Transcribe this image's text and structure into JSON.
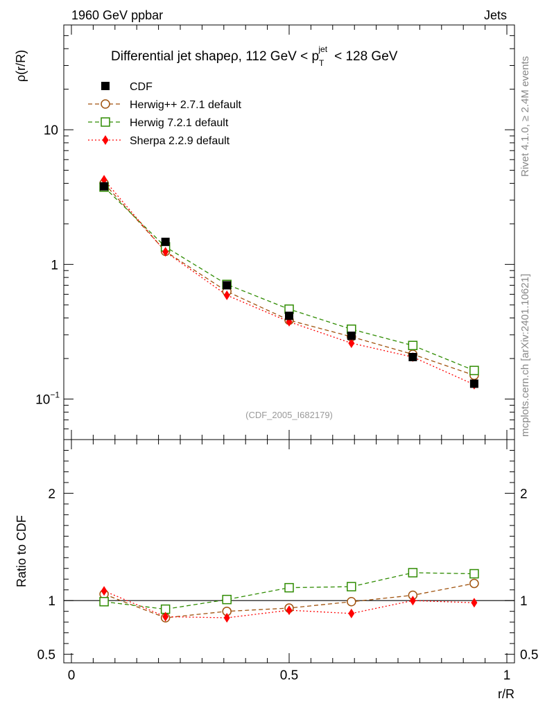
{
  "header": {
    "left": "1960 GeV ppbar",
    "right": "Jets"
  },
  "side_labels": {
    "rivet": "Rivet 4.1.0, ≥ 2.4M events",
    "mcplots": "mcplots.cern.ch [arXiv:2401.10621]"
  },
  "analysis_tag": "(CDF_2005_I682179)",
  "chart_data": [
    {
      "type": "line",
      "title": "Differential jet shapeρ, 112 GeV < p",
      "title_sub": "T",
      "title_sup": "jet",
      "title_end": "< 128 GeV",
      "ylabel": "ρ(r/R)",
      "yscale": "log",
      "ylim": [
        0.05,
        60
      ],
      "xlim": [
        0,
        1
      ],
      "yticks": [
        {
          "value": 0.1,
          "label": "10",
          "sup": "−1"
        },
        {
          "value": 1,
          "label": "1",
          "sup": ""
        },
        {
          "value": 10,
          "label": "10",
          "sup": ""
        }
      ],
      "x": [
        0.075,
        0.216,
        0.357,
        0.5,
        0.643,
        0.784,
        0.925
      ],
      "series": [
        {
          "name": "CDF",
          "color": "#000000",
          "marker": "square-filled",
          "line": "none",
          "values": [
            3.8,
            1.47,
            0.7,
            0.415,
            0.295,
            0.205,
            0.13
          ]
        },
        {
          "name": "Herwig++ 2.7.1 default",
          "color": "#a0520d",
          "marker": "circle-open",
          "line": "dashed",
          "values": [
            4.0,
            1.25,
            0.63,
            0.385,
            0.29,
            0.215,
            0.15
          ]
        },
        {
          "name": "Herwig 7.2.1 default",
          "color": "#2e8b00",
          "marker": "square-open",
          "line": "dashed",
          "values": [
            3.75,
            1.35,
            0.71,
            0.465,
            0.33,
            0.25,
            0.163
          ]
        },
        {
          "name": "Sherpa 2.2.9 default",
          "color": "#ff0000",
          "marker": "diamond-filled",
          "line": "dotted",
          "values": [
            4.25,
            1.24,
            0.59,
            0.375,
            0.26,
            0.205,
            0.128
          ]
        }
      ]
    },
    {
      "type": "line",
      "title": "",
      "ylabel": "Ratio to CDF",
      "xlabel": "r/R",
      "ylim": [
        0.42,
        2.5
      ],
      "xlim": [
        0,
        1
      ],
      "yticks": [
        {
          "value": 0.5,
          "label": "0.5"
        },
        {
          "value": 1,
          "label": "1"
        },
        {
          "value": 2,
          "label": "2"
        }
      ],
      "xticks": [
        {
          "value": 0,
          "label": "0"
        },
        {
          "value": 0.5,
          "label": "0.5"
        },
        {
          "value": 1,
          "label": "1"
        }
      ],
      "x": [
        0.075,
        0.216,
        0.357,
        0.5,
        0.643,
        0.784,
        0.925
      ],
      "reference": 1,
      "series": [
        {
          "name": "Herwig++ 2.7.1 default",
          "color": "#a0520d",
          "marker": "circle-open",
          "line": "dashed",
          "values": [
            1.06,
            0.84,
            0.9,
            0.93,
            0.99,
            1.05,
            1.16
          ]
        },
        {
          "name": "Herwig 7.2.1 default",
          "color": "#2e8b00",
          "marker": "square-open",
          "line": "dashed",
          "values": [
            0.99,
            0.92,
            1.01,
            1.12,
            1.13,
            1.26,
            1.25
          ]
        },
        {
          "name": "Sherpa 2.2.9 default",
          "color": "#ff0000",
          "marker": "diamond-filled",
          "line": "dotted",
          "values": [
            1.09,
            0.85,
            0.84,
            0.91,
            0.88,
            1.0,
            0.98
          ]
        }
      ]
    }
  ]
}
